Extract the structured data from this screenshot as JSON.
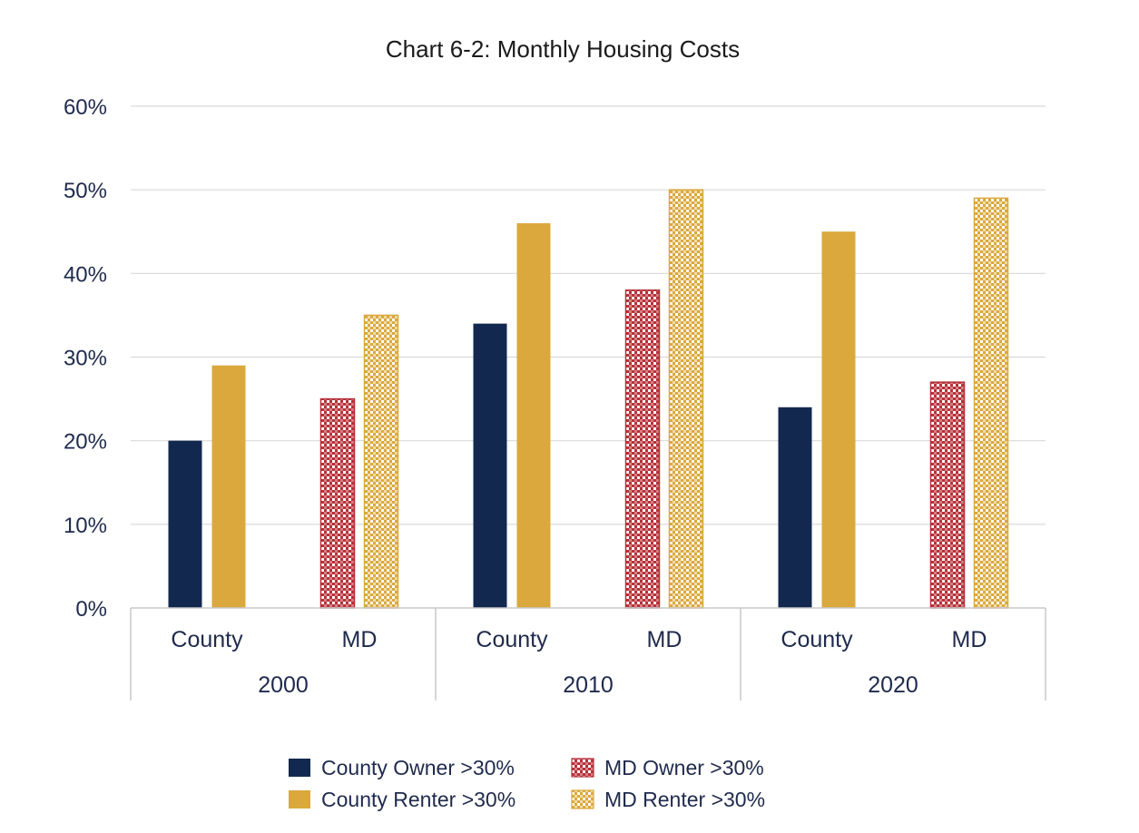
{
  "chart_data": {
    "type": "bar",
    "title": "Chart 6-2: Monthly Housing Costs",
    "xlabel": "",
    "ylabel": "",
    "ylim": [
      0,
      60
    ],
    "yticks": [
      "0%",
      "10%",
      "20%",
      "30%",
      "40%",
      "50%",
      "60%"
    ],
    "groups": [
      {
        "label": "2000",
        "subgroups": [
          {
            "label": "County",
            "series": [
              "County Owner >30%",
              "County Renter >30%"
            ],
            "values": [
              20,
              29
            ]
          },
          {
            "label": "MD",
            "series": [
              "MD Owner >30%",
              "MD Renter >30%"
            ],
            "values": [
              25,
              35
            ]
          }
        ]
      },
      {
        "label": "2010",
        "subgroups": [
          {
            "label": "County",
            "series": [
              "County Owner >30%",
              "County Renter >30%"
            ],
            "values": [
              34,
              46
            ]
          },
          {
            "label": "MD",
            "series": [
              "MD Owner >30%",
              "MD Renter >30%"
            ],
            "values": [
              38,
              50
            ]
          }
        ]
      },
      {
        "label": "2020",
        "subgroups": [
          {
            "label": "County",
            "series": [
              "County Owner >30%",
              "County Renter >30%"
            ],
            "values": [
              24,
              45
            ]
          },
          {
            "label": "MD",
            "series": [
              "MD Owner >30%",
              "MD Renter >30%"
            ],
            "values": [
              27,
              49
            ]
          }
        ]
      }
    ],
    "legend": [
      {
        "name": "County Owner >30%",
        "color": "#13284f",
        "pattern": "solid"
      },
      {
        "name": "MD Owner >30%",
        "color": "#b5323a",
        "pattern": "checker"
      },
      {
        "name": "County Renter >30%",
        "color": "#daa83d",
        "pattern": "solid"
      },
      {
        "name": "MD Renter >30%",
        "color": "#daa83d",
        "pattern": "checker"
      }
    ],
    "legend_position": "bottom-center",
    "grid": true
  }
}
